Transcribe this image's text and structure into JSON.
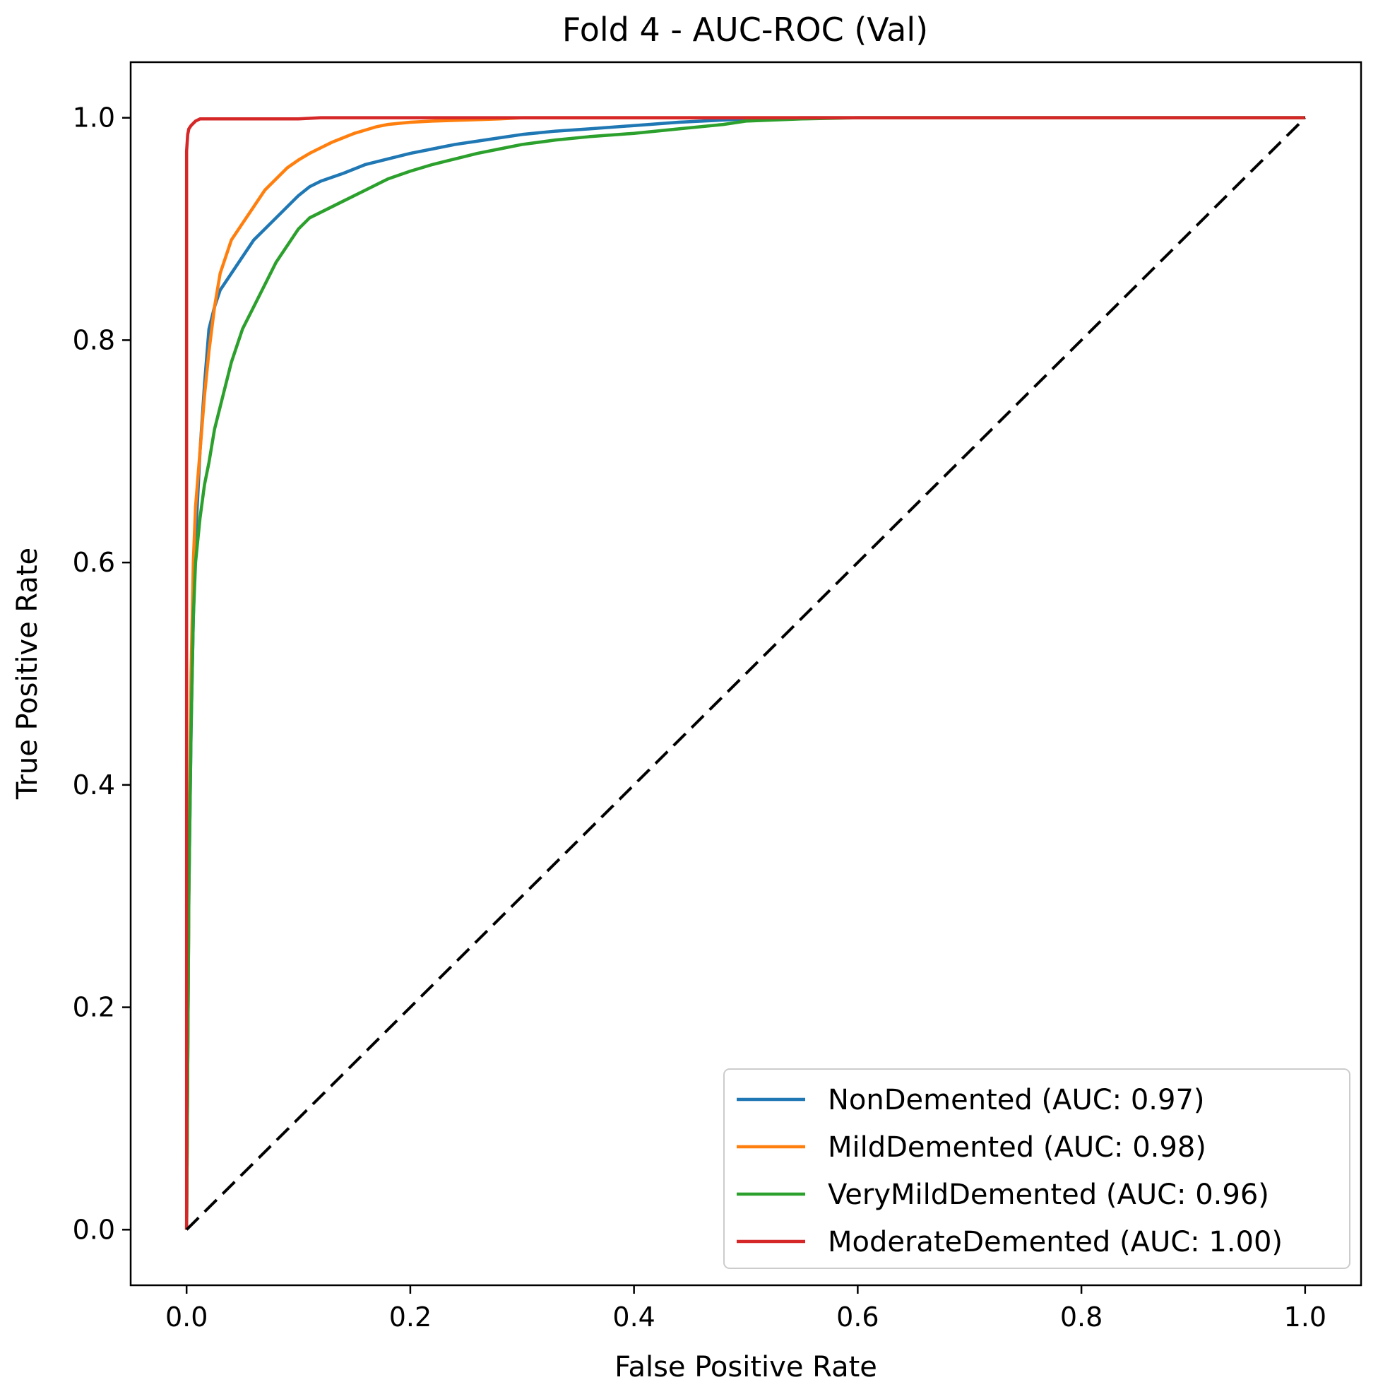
{
  "chart_data": {
    "type": "line",
    "title": "Fold 4 - AUC-ROC (Val)",
    "xlabel": "False Positive Rate",
    "ylabel": "True Positive Rate",
    "xlim": [
      -0.05,
      1.05
    ],
    "ylim": [
      -0.05,
      1.05
    ],
    "xticks": [
      0.0,
      0.2,
      0.4,
      0.6,
      0.8,
      1.0
    ],
    "yticks": [
      0.0,
      0.2,
      0.4,
      0.6,
      0.8,
      1.0
    ],
    "xtick_labels": [
      "0.0",
      "0.2",
      "0.4",
      "0.6",
      "0.8",
      "1.0"
    ],
    "ytick_labels": [
      "0.0",
      "0.2",
      "0.4",
      "0.6",
      "0.8",
      "1.0"
    ],
    "grid": false,
    "legend_position": "lower-right",
    "series": [
      {
        "name": "NonDemented (AUC: 0.97)",
        "color": "#1f77b4",
        "x": [
          0.0,
          0.002,
          0.004,
          0.006,
          0.008,
          0.012,
          0.016,
          0.02,
          0.025,
          0.03,
          0.04,
          0.05,
          0.06,
          0.07,
          0.08,
          0.09,
          0.1,
          0.11,
          0.12,
          0.14,
          0.16,
          0.18,
          0.2,
          0.22,
          0.24,
          0.26,
          0.28,
          0.3,
          0.33,
          0.36,
          0.4,
          0.44,
          0.48,
          0.5,
          0.55,
          0.6,
          0.7,
          0.8,
          0.9,
          1.0
        ],
        "y": [
          0.0,
          0.3,
          0.45,
          0.55,
          0.62,
          0.7,
          0.76,
          0.81,
          0.83,
          0.845,
          0.86,
          0.875,
          0.89,
          0.9,
          0.91,
          0.92,
          0.93,
          0.938,
          0.943,
          0.95,
          0.958,
          0.963,
          0.968,
          0.972,
          0.976,
          0.979,
          0.982,
          0.985,
          0.988,
          0.99,
          0.993,
          0.996,
          0.998,
          0.999,
          1.0,
          1.0,
          1.0,
          1.0,
          1.0,
          1.0
        ]
      },
      {
        "name": "MildDemented (AUC: 0.98)",
        "color": "#ff7f0e",
        "x": [
          0.0,
          0.002,
          0.004,
          0.006,
          0.008,
          0.012,
          0.016,
          0.02,
          0.025,
          0.03,
          0.04,
          0.05,
          0.06,
          0.07,
          0.08,
          0.09,
          0.1,
          0.11,
          0.12,
          0.13,
          0.14,
          0.15,
          0.16,
          0.17,
          0.18,
          0.2,
          0.22,
          0.25,
          0.28,
          0.3,
          0.35,
          0.4,
          0.5,
          0.6,
          0.7,
          0.8,
          0.9,
          1.0
        ],
        "y": [
          0.0,
          0.3,
          0.5,
          0.6,
          0.65,
          0.7,
          0.75,
          0.79,
          0.83,
          0.86,
          0.89,
          0.905,
          0.92,
          0.935,
          0.945,
          0.955,
          0.962,
          0.968,
          0.973,
          0.978,
          0.982,
          0.986,
          0.989,
          0.992,
          0.994,
          0.996,
          0.997,
          0.998,
          0.999,
          1.0,
          1.0,
          1.0,
          1.0,
          1.0,
          1.0,
          1.0,
          1.0,
          1.0
        ]
      },
      {
        "name": "VeryMildDemented (AUC: 0.96)",
        "color": "#2ca02c",
        "x": [
          0.0,
          0.002,
          0.004,
          0.006,
          0.008,
          0.012,
          0.016,
          0.02,
          0.025,
          0.03,
          0.035,
          0.04,
          0.05,
          0.06,
          0.07,
          0.08,
          0.09,
          0.1,
          0.11,
          0.12,
          0.14,
          0.16,
          0.18,
          0.2,
          0.22,
          0.24,
          0.26,
          0.28,
          0.3,
          0.33,
          0.36,
          0.4,
          0.44,
          0.48,
          0.5,
          0.55,
          0.6,
          0.7,
          0.8,
          0.9,
          1.0
        ],
        "y": [
          0.0,
          0.3,
          0.45,
          0.55,
          0.6,
          0.64,
          0.67,
          0.69,
          0.72,
          0.74,
          0.76,
          0.78,
          0.81,
          0.83,
          0.85,
          0.87,
          0.885,
          0.9,
          0.91,
          0.915,
          0.925,
          0.935,
          0.945,
          0.952,
          0.958,
          0.963,
          0.968,
          0.972,
          0.976,
          0.98,
          0.983,
          0.986,
          0.99,
          0.994,
          0.997,
          0.999,
          1.0,
          1.0,
          1.0,
          1.0,
          1.0
        ]
      },
      {
        "name": "ModerateDemented (AUC: 1.00)",
        "color": "#d62728",
        "x": [
          0.0,
          0.0,
          0.001,
          0.002,
          0.004,
          0.008,
          0.012,
          0.05,
          0.1,
          0.12,
          0.2,
          0.4,
          0.6,
          0.8,
          1.0
        ],
        "y": [
          0.0,
          0.97,
          0.985,
          0.99,
          0.993,
          0.997,
          0.999,
          0.999,
          0.999,
          1.0,
          1.0,
          1.0,
          1.0,
          1.0,
          1.0
        ]
      },
      {
        "name": "chance",
        "color": "#000000",
        "dashed": true,
        "x": [
          0.0,
          1.0
        ],
        "y": [
          0.0,
          1.0
        ]
      }
    ]
  }
}
